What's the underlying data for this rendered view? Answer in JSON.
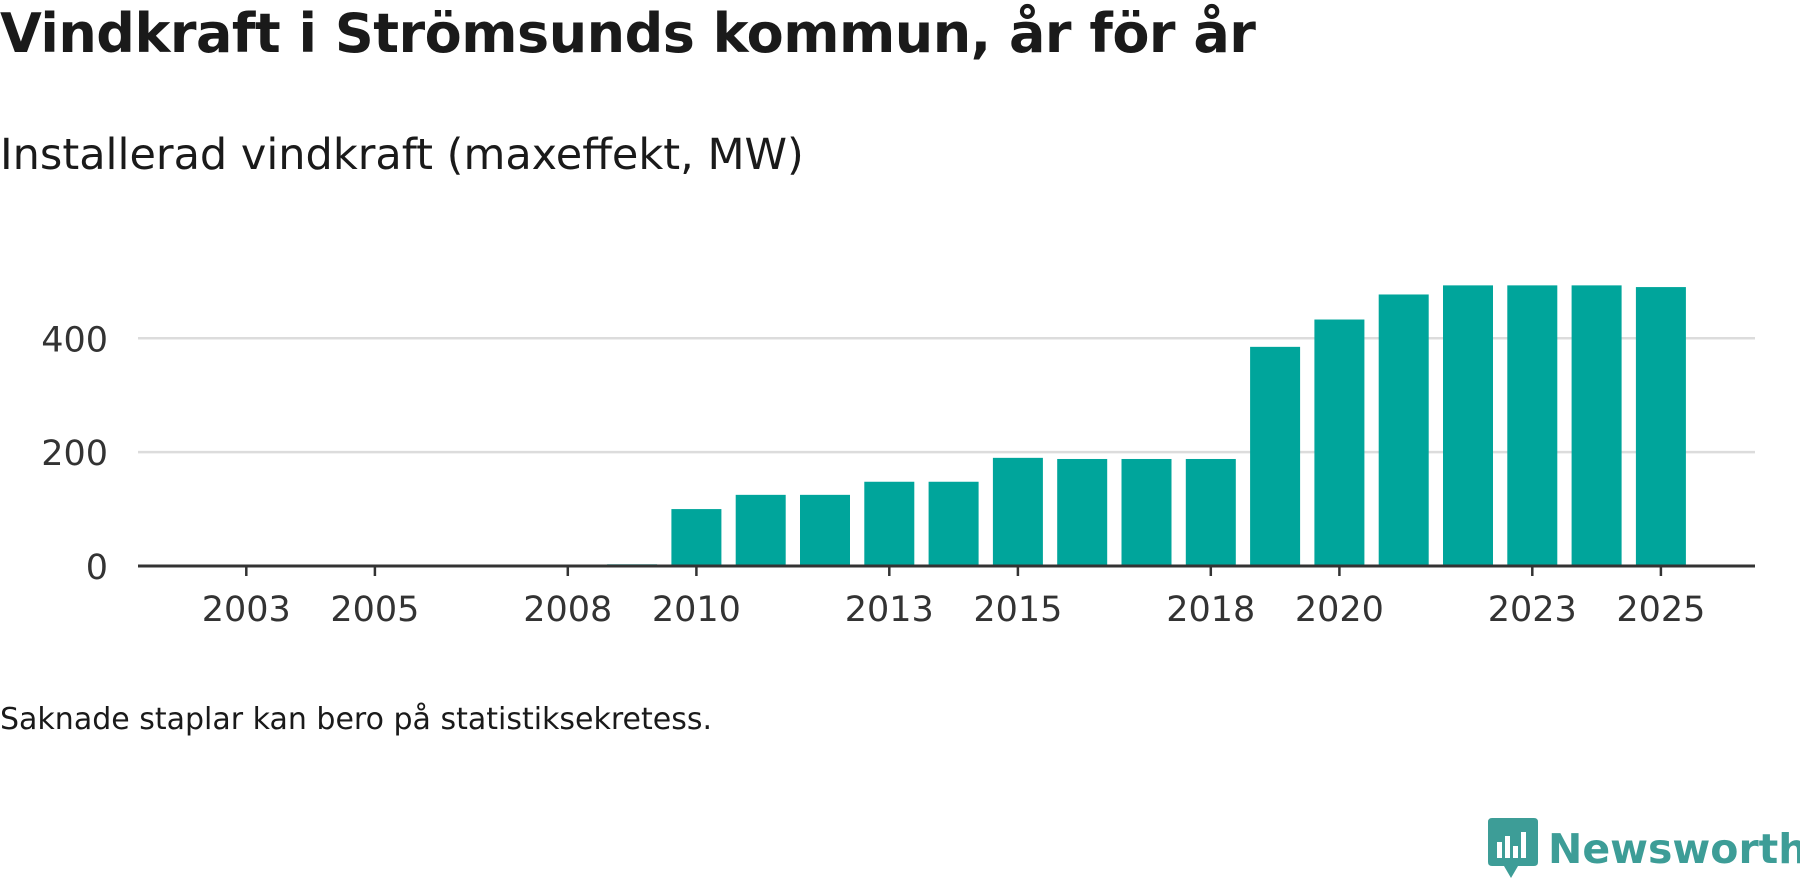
{
  "chart_data": {
    "type": "bar",
    "title": "Vindkraft i Strömsunds kommun, år för år",
    "subtitle": "Installerad vindkraft (maxeffekt, MW)",
    "categories": [
      "2002",
      "2003",
      "2004",
      "2005",
      "2006",
      "2007",
      "2008",
      "2009",
      "2010",
      "2011",
      "2012",
      "2013",
      "2014",
      "2015",
      "2016",
      "2017",
      "2018",
      "2019",
      "2020",
      "2021",
      "2022",
      "2023",
      "2024",
      "2025"
    ],
    "values": [
      0,
      0,
      0,
      0,
      0,
      0,
      2,
      3,
      100,
      125,
      125,
      148,
      148,
      190,
      188,
      188,
      188,
      385,
      433,
      477,
      493,
      493,
      493,
      490
    ],
    "x_tick_labels": [
      "2003",
      "2005",
      "2008",
      "2010",
      "2013",
      "2015",
      "2018",
      "2020",
      "2023",
      "2025"
    ],
    "y_ticks": [
      0,
      200,
      400
    ],
    "y_tick_labels": [
      "0",
      "200",
      "400"
    ],
    "ylim": [
      0,
      520
    ],
    "xlabel": "",
    "ylabel": "",
    "grid": true,
    "bar_color": "#00a59b",
    "grid_color": "#dcdcdc",
    "axis_color": "#333333"
  },
  "note": "Saknade staplar kan bero på statistiksekretess.",
  "brand": {
    "name": "Newsworthy",
    "color": "#3d9d97"
  }
}
